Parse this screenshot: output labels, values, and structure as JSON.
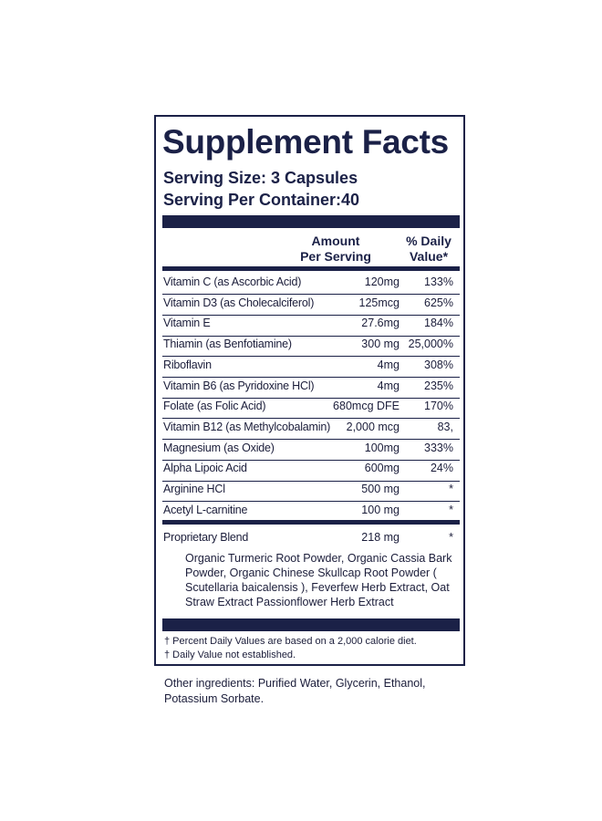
{
  "title": "Supplement Facts",
  "serving_size": "Serving Size: 3 Capsules",
  "servings_per_container": "Serving Per Container:40",
  "header": {
    "amount_line1": "Amount",
    "amount_line2": "Per Serving",
    "dv_line1": "% Daily",
    "dv_line2": "Value*"
  },
  "rows": [
    {
      "name": "Vitamin C (as Ascorbic Acid)",
      "amount": "120mg",
      "dv": "133%"
    },
    {
      "name": "Vitamin D3 (as Cholecalciferol)",
      "amount": "125mcg",
      "dv": "625%"
    },
    {
      "name": "Vitamin E",
      "amount": "27.6mg",
      "dv": "184%"
    },
    {
      "name": "Thiamin (as Benfotiamine)",
      "amount": "300 mg",
      "dv": "25,000%"
    },
    {
      "name": "Riboflavin",
      "amount": "4mg",
      "dv": "308%"
    },
    {
      "name": "Vitamin B6 (as Pyridoxine HCl)",
      "amount": "4mg",
      "dv": "235%"
    },
    {
      "name": "Folate (as Folic Acid)",
      "amount": "680mcg DFE",
      "dv": "170%"
    },
    {
      "name": "Vitamin B12 (as Methylcobalamin)",
      "amount": "2,000 mcg",
      "dv": "83,"
    },
    {
      "name": "Magnesium (as Oxide)",
      "amount": "100mg",
      "dv": "333%"
    },
    {
      "name": "Alpha Lipoic Acid",
      "amount": "600mg",
      "dv": "24%"
    },
    {
      "name": "Arginine HCl",
      "amount": "500 mg",
      "dv": "*"
    },
    {
      "name": "Acetyl L-carnitine",
      "amount": "100 mg",
      "dv": "*"
    }
  ],
  "blend": {
    "name": "Proprietary Blend",
    "amount": "218 mg",
    "dv": "*",
    "ingredients": "Organic Turmeric Root Powder, Organic Cassia Bark Powder, Organic Chinese Skullcap Root Powder ( Scutellaria baicalensis ), Feverfew Herb Extract, Oat Straw Extract Passionflower Herb Extract"
  },
  "footnotes": {
    "percent_note": "† Percent Daily Values are based on a 2,000 calorie diet.",
    "dv_note": "† Daily Value not established."
  },
  "other_ingredients": "Other ingredients: Purified Water, Glycerin, Ethanol, Potassium Sorbate.",
  "colors": {
    "navy": "#1b2147",
    "text": "#1b1d3a"
  }
}
